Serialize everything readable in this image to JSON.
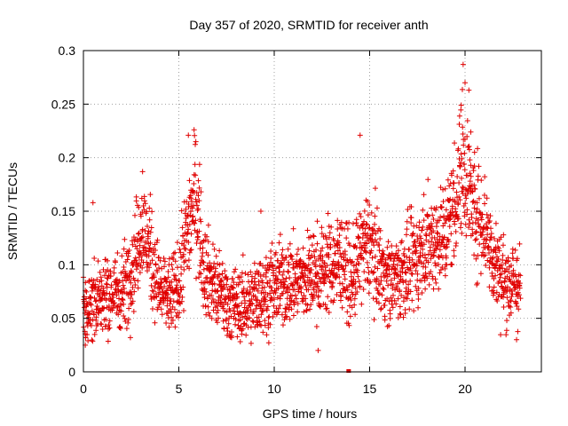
{
  "chart_data": {
    "type": "scatter",
    "title": "Day 357 of 2020, SRMTID for receiver anth",
    "xlabel": "GPS time / hours",
    "ylabel": "SRMTID / TECUs",
    "xlim": [
      0,
      24
    ],
    "ylim": [
      0,
      0.3
    ],
    "x_ticks": [
      0,
      5,
      10,
      15,
      20
    ],
    "x_tick_labels": [
      "0",
      "5",
      "10",
      "15",
      "20"
    ],
    "y_ticks": [
      0,
      0.05,
      0.1,
      0.15,
      0.2,
      0.25,
      0.3
    ],
    "y_tick_labels": [
      "0",
      "0.05",
      "0.1",
      "0.15",
      "0.2",
      "0.25",
      "0.3"
    ],
    "grid": true,
    "marker": "plus",
    "color": "#e00000",
    "data_range_hours": [
      0,
      22.9
    ],
    "series": [
      {
        "name": "SRMTID",
        "trend": {
          "x": [
            0,
            1,
            2,
            2.6,
            3,
            3.4,
            4,
            4.6,
            5,
            5.5,
            5.9,
            6.3,
            7,
            8,
            8.7,
            9.5,
            10,
            11,
            12,
            13,
            13.6,
            14,
            14.5,
            15,
            15.5,
            16,
            17,
            18,
            19,
            19.5,
            19.9,
            20.4,
            21,
            21.5,
            22,
            22.9
          ],
          "y": [
            0.055,
            0.07,
            0.075,
            0.1,
            0.135,
            0.12,
            0.075,
            0.07,
            0.08,
            0.14,
            0.165,
            0.1,
            0.075,
            0.06,
            0.065,
            0.075,
            0.08,
            0.085,
            0.09,
            0.1,
            0.105,
            0.08,
            0.11,
            0.12,
            0.1,
            0.085,
            0.095,
            0.12,
            0.13,
            0.16,
            0.2,
            0.155,
            0.14,
            0.105,
            0.085,
            0.08
          ]
        },
        "outliers": [
          {
            "x": 13.9,
            "y": 0.0
          },
          {
            "x": 14.5,
            "y": 0.221
          },
          {
            "x": 0.5,
            "y": 0.158
          },
          {
            "x": 3.1,
            "y": 0.187
          },
          {
            "x": 5.8,
            "y": 0.226
          },
          {
            "x": 5.5,
            "y": 0.221
          },
          {
            "x": 12.3,
            "y": 0.02
          },
          {
            "x": 19.9,
            "y": 0.287
          },
          {
            "x": 20.0,
            "y": 0.27
          },
          {
            "x": 20.2,
            "y": 0.263
          },
          {
            "x": 19.8,
            "y": 0.249
          },
          {
            "x": 20.3,
            "y": 0.224
          },
          {
            "x": 9.3,
            "y": 0.15
          },
          {
            "x": 22.7,
            "y": 0.03
          },
          {
            "x": 0.1,
            "y": 0.025
          }
        ]
      }
    ]
  }
}
